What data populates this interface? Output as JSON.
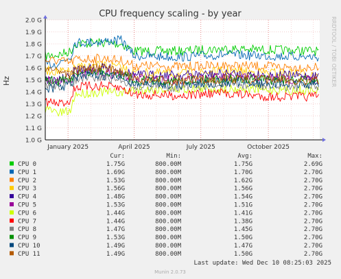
{
  "chart_data": {
    "type": "line",
    "title": "CPU frequency scaling - by year",
    "ylabel": "Hz",
    "watermark": "RRDTOOL / TOBI OETIKER",
    "ylim": [
      1.0,
      2.0
    ],
    "yticks": [
      "1.0 G",
      "1.1 G",
      "1.2 G",
      "1.3 G",
      "1.4 G",
      "1.5 G",
      "1.6 G",
      "1.7 G",
      "1.8 G",
      "1.9 G",
      "2.0 G"
    ],
    "xlim": [
      "2024-12-01",
      "2025-12-10"
    ],
    "xticks": [
      {
        "date": "2025-01-01",
        "label": "January 2025"
      },
      {
        "date": "2025-04-01",
        "label": "April 2025"
      },
      {
        "date": "2025-07-01",
        "label": "July 2025"
      },
      {
        "date": "2025-10-01",
        "label": "October 2025"
      }
    ],
    "grid": true,
    "legend_headers": {
      "cur": "Cur:",
      "min": "Min:",
      "avg": "Avg:",
      "max": "Max:"
    },
    "series": [
      {
        "name": "CPU 0",
        "color": "#00cc00",
        "cur": "1.75G",
        "min": "800.00M",
        "avg": "1.75G",
        "max": "2.69G",
        "points": [
          [
            "2024-12-01",
            1.7
          ],
          [
            "2024-12-20",
            1.71
          ],
          [
            "2025-01-05",
            1.74
          ],
          [
            "2025-01-10",
            1.8
          ],
          [
            "2025-02-15",
            1.81
          ],
          [
            "2025-03-15",
            1.8
          ],
          [
            "2025-04-01",
            1.74
          ],
          [
            "2025-06-01",
            1.74
          ],
          [
            "2025-08-01",
            1.76
          ],
          [
            "2025-10-01",
            1.75
          ],
          [
            "2025-12-10",
            1.74
          ]
        ]
      },
      {
        "name": "CPU 1",
        "color": "#0066b3",
        "cur": "1.69G",
        "min": "800.00M",
        "avg": "1.70G",
        "max": "2.70G",
        "points": [
          [
            "2024-12-01",
            1.62
          ],
          [
            "2024-12-20",
            1.64
          ],
          [
            "2025-01-05",
            1.7
          ],
          [
            "2025-01-10",
            1.81
          ],
          [
            "2025-02-15",
            1.82
          ],
          [
            "2025-03-15",
            1.83
          ],
          [
            "2025-04-01",
            1.7
          ],
          [
            "2025-06-01",
            1.69
          ],
          [
            "2025-08-01",
            1.71
          ],
          [
            "2025-10-01",
            1.7
          ],
          [
            "2025-12-10",
            1.69
          ]
        ]
      },
      {
        "name": "CPU 2",
        "color": "#ff8000",
        "cur": "1.53G",
        "min": "800.00M",
        "avg": "1.62G",
        "max": "2.70G",
        "points": [
          [
            "2024-12-01",
            1.66
          ],
          [
            "2024-12-20",
            1.66
          ],
          [
            "2025-01-05",
            1.64
          ],
          [
            "2025-01-10",
            1.67
          ],
          [
            "2025-02-15",
            1.68
          ],
          [
            "2025-03-15",
            1.66
          ],
          [
            "2025-04-01",
            1.62
          ],
          [
            "2025-06-01",
            1.61
          ],
          [
            "2025-08-01",
            1.62
          ],
          [
            "2025-10-01",
            1.61
          ],
          [
            "2025-12-10",
            1.6
          ]
        ]
      },
      {
        "name": "CPU 3",
        "color": "#ffcc00",
        "cur": "1.56G",
        "min": "800.00M",
        "avg": "1.56G",
        "max": "2.70G",
        "points": [
          [
            "2024-12-01",
            1.58
          ],
          [
            "2024-12-20",
            1.57
          ],
          [
            "2025-01-05",
            1.56
          ],
          [
            "2025-01-10",
            1.6
          ],
          [
            "2025-02-15",
            1.62
          ],
          [
            "2025-03-15",
            1.6
          ],
          [
            "2025-04-01",
            1.56
          ],
          [
            "2025-06-01",
            1.55
          ],
          [
            "2025-08-01",
            1.57
          ],
          [
            "2025-10-01",
            1.56
          ],
          [
            "2025-12-10",
            1.55
          ]
        ]
      },
      {
        "name": "CPU 4",
        "color": "#330099",
        "cur": "1.48G",
        "min": "800.00M",
        "avg": "1.54G",
        "max": "2.70G",
        "points": [
          [
            "2024-12-01",
            1.5
          ],
          [
            "2024-12-20",
            1.5
          ],
          [
            "2025-01-05",
            1.52
          ],
          [
            "2025-01-10",
            1.58
          ],
          [
            "2025-02-15",
            1.6
          ],
          [
            "2025-03-15",
            1.58
          ],
          [
            "2025-04-01",
            1.54
          ],
          [
            "2025-06-01",
            1.54
          ],
          [
            "2025-08-01",
            1.55
          ],
          [
            "2025-10-01",
            1.54
          ],
          [
            "2025-12-10",
            1.53
          ]
        ]
      },
      {
        "name": "CPU 5",
        "color": "#990099",
        "cur": "1.53G",
        "min": "800.00M",
        "avg": "1.51G",
        "max": "2.70G",
        "points": [
          [
            "2024-12-01",
            1.5
          ],
          [
            "2024-12-20",
            1.49
          ],
          [
            "2025-01-05",
            1.5
          ],
          [
            "2025-01-10",
            1.55
          ],
          [
            "2025-02-15",
            1.56
          ],
          [
            "2025-03-15",
            1.54
          ],
          [
            "2025-04-01",
            1.51
          ],
          [
            "2025-06-01",
            1.5
          ],
          [
            "2025-08-01",
            1.52
          ],
          [
            "2025-10-01",
            1.51
          ],
          [
            "2025-12-10",
            1.5
          ]
        ]
      },
      {
        "name": "CPU 6",
        "color": "#ccff00",
        "cur": "1.44G",
        "min": "800.00M",
        "avg": "1.41G",
        "max": "2.70G",
        "points": [
          [
            "2024-12-01",
            1.26
          ],
          [
            "2024-12-20",
            1.22
          ],
          [
            "2025-01-05",
            1.24
          ],
          [
            "2025-01-10",
            1.38
          ],
          [
            "2025-02-15",
            1.4
          ],
          [
            "2025-03-15",
            1.39
          ],
          [
            "2025-04-01",
            1.42
          ],
          [
            "2025-06-01",
            1.42
          ],
          [
            "2025-08-01",
            1.43
          ],
          [
            "2025-10-01",
            1.42
          ],
          [
            "2025-12-10",
            1.41
          ]
        ]
      },
      {
        "name": "CPU 7",
        "color": "#ff0000",
        "cur": "1.44G",
        "min": "800.00M",
        "avg": "1.38G",
        "max": "2.70G",
        "points": [
          [
            "2024-12-01",
            1.32
          ],
          [
            "2024-12-20",
            1.3
          ],
          [
            "2025-01-05",
            1.33
          ],
          [
            "2025-01-10",
            1.44
          ],
          [
            "2025-02-15",
            1.45
          ],
          [
            "2025-03-15",
            1.43
          ],
          [
            "2025-04-01",
            1.38
          ],
          [
            "2025-06-01",
            1.37
          ],
          [
            "2025-08-01",
            1.39
          ],
          [
            "2025-10-01",
            1.36
          ],
          [
            "2025-12-10",
            1.36
          ]
        ]
      },
      {
        "name": "CPU 8",
        "color": "#808080",
        "cur": "1.47G",
        "min": "800.00M",
        "avg": "1.45G",
        "max": "2.70G",
        "points": [
          [
            "2024-12-01",
            1.46
          ],
          [
            "2024-12-20",
            1.45
          ],
          [
            "2025-01-05",
            1.46
          ],
          [
            "2025-01-10",
            1.5
          ],
          [
            "2025-02-15",
            1.52
          ],
          [
            "2025-03-15",
            1.5
          ],
          [
            "2025-04-01",
            1.45
          ],
          [
            "2025-06-01",
            1.44
          ],
          [
            "2025-08-01",
            1.46
          ],
          [
            "2025-10-01",
            1.45
          ],
          [
            "2025-12-10",
            1.44
          ]
        ]
      },
      {
        "name": "CPU 9",
        "color": "#008f00",
        "cur": "1.53G",
        "min": "800.00M",
        "avg": "1.50G",
        "max": "2.70G",
        "points": [
          [
            "2024-12-01",
            1.5
          ],
          [
            "2024-12-20",
            1.49
          ],
          [
            "2025-01-05",
            1.5
          ],
          [
            "2025-01-10",
            1.56
          ],
          [
            "2025-02-15",
            1.57
          ],
          [
            "2025-03-15",
            1.55
          ],
          [
            "2025-04-01",
            1.5
          ],
          [
            "2025-06-01",
            1.49
          ],
          [
            "2025-08-01",
            1.51
          ],
          [
            "2025-10-01",
            1.5
          ],
          [
            "2025-12-10",
            1.49
          ]
        ]
      },
      {
        "name": "CPU 10",
        "color": "#00487d",
        "cur": "1.49G",
        "min": "800.00M",
        "avg": "1.47G",
        "max": "2.70G",
        "points": [
          [
            "2024-12-01",
            1.43
          ],
          [
            "2024-12-20",
            1.44
          ],
          [
            "2025-01-05",
            1.46
          ],
          [
            "2025-01-10",
            1.52
          ],
          [
            "2025-02-15",
            1.54
          ],
          [
            "2025-03-15",
            1.52
          ],
          [
            "2025-04-01",
            1.47
          ],
          [
            "2025-06-01",
            1.46
          ],
          [
            "2025-08-01",
            1.48
          ],
          [
            "2025-10-01",
            1.47
          ],
          [
            "2025-12-10",
            1.46
          ]
        ]
      },
      {
        "name": "CPU 11",
        "color": "#b35a00",
        "cur": "1.49G",
        "min": "800.00M",
        "avg": "1.50G",
        "max": "2.70G",
        "points": [
          [
            "2024-12-01",
            1.6
          ],
          [
            "2024-12-20",
            1.58
          ],
          [
            "2025-01-05",
            1.54
          ],
          [
            "2025-01-10",
            1.58
          ],
          [
            "2025-02-15",
            1.6
          ],
          [
            "2025-03-15",
            1.57
          ],
          [
            "2025-04-01",
            1.5
          ],
          [
            "2025-06-01",
            1.49
          ],
          [
            "2025-08-01",
            1.51
          ],
          [
            "2025-10-01",
            1.5
          ],
          [
            "2025-12-10",
            1.49
          ]
        ]
      }
    ]
  },
  "footer": {
    "last_update": "Last update: Wed Dec 10 08:25:03 2025",
    "version": "Munin 2.0.73"
  }
}
